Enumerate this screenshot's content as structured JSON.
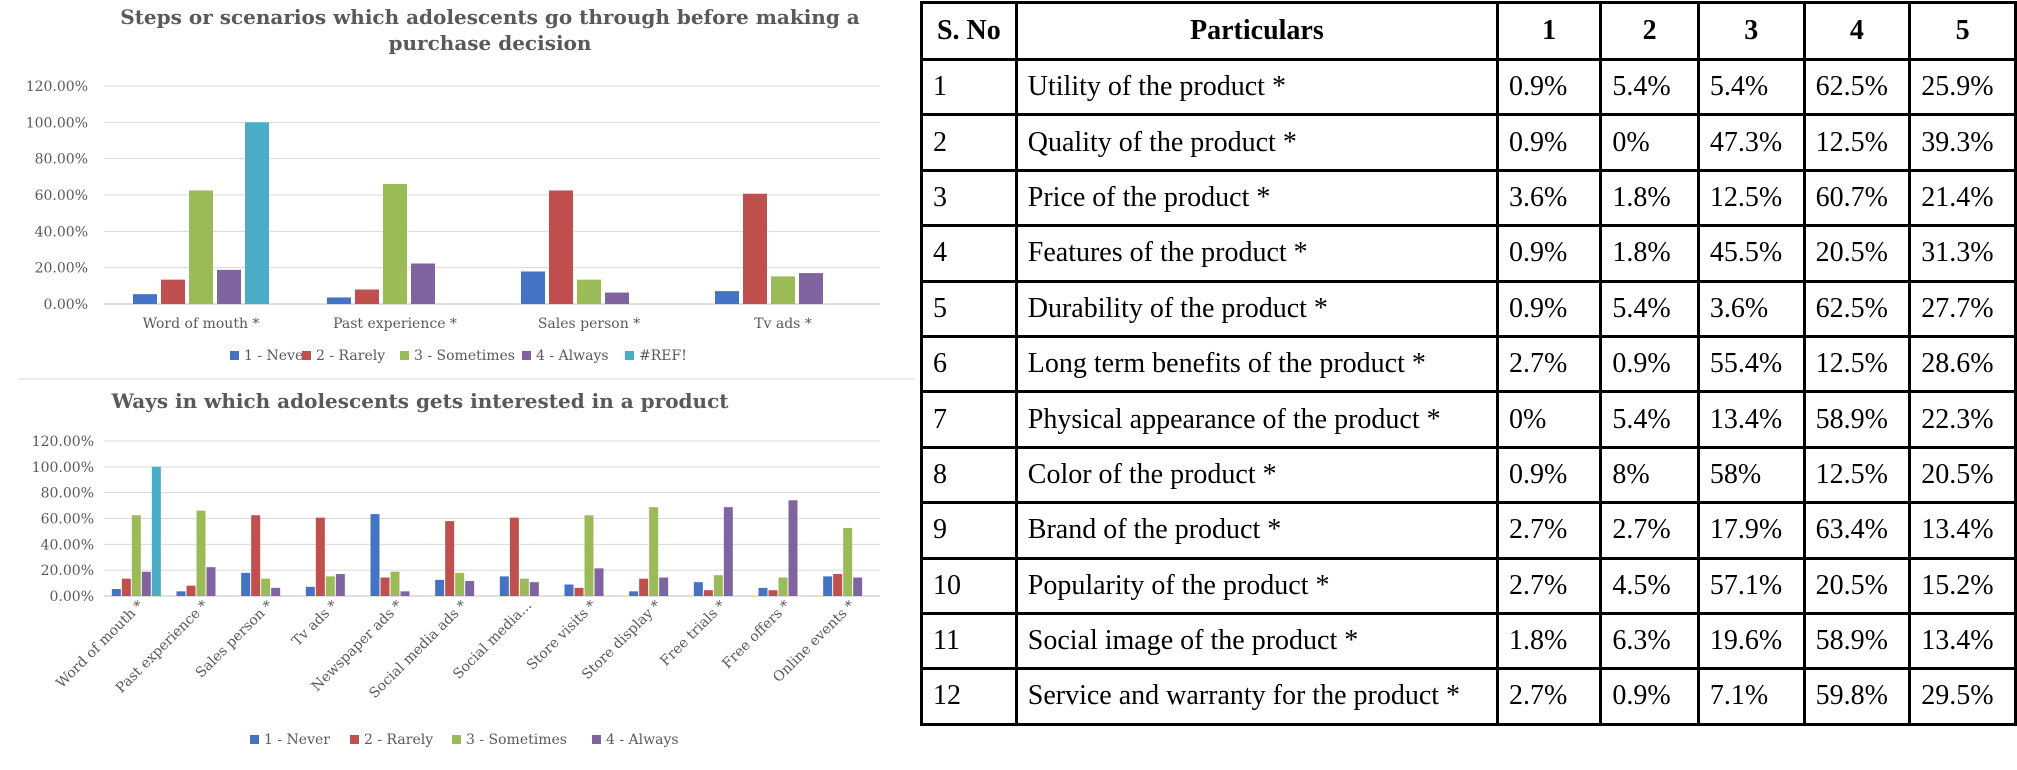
{
  "colors": {
    "never": "#4472c4",
    "rarely": "#c0504d",
    "sometimes": "#9bbb59",
    "always": "#8064a2",
    "ref": "#4bacc6"
  },
  "chart_data": [
    {
      "type": "bar",
      "title_lines": [
        "Steps or scenarios which adolescents go through before making a",
        "purchase decision"
      ],
      "categories": [
        "Word of mouth *",
        "Past experience *",
        "Sales person *",
        "Tv ads *"
      ],
      "ylim": [
        0,
        120
      ],
      "yticks": [
        "0.00%",
        "20.00%",
        "40.00%",
        "60.00%",
        "80.00%",
        "100.00%",
        "120.00%"
      ],
      "grid": true,
      "legend_position": "bottom",
      "series": [
        {
          "name": "1 - Never",
          "color": "#4472c4",
          "values": [
            5.4,
            3.6,
            17.9,
            7.1
          ]
        },
        {
          "name": "2 - Rarely",
          "color": "#c0504d",
          "values": [
            13.4,
            8.0,
            62.5,
            60.7
          ]
        },
        {
          "name": "3 - Sometimes",
          "color": "#9bbb59",
          "values": [
            62.5,
            66.1,
            13.4,
            15.2
          ]
        },
        {
          "name": "4 - Always",
          "color": "#8064a2",
          "values": [
            18.8,
            22.3,
            6.3,
            17.0
          ]
        },
        {
          "name": "#REF!",
          "color": "#4bacc6",
          "values": [
            100,
            0,
            0,
            0
          ]
        }
      ]
    },
    {
      "type": "bar",
      "title_lines": [
        "Ways in which adolescents gets interested in a product"
      ],
      "categories": [
        "Word of mouth *",
        "Past experience *",
        "Sales person *",
        "Tv ads *",
        "Newspaper ads *",
        "Social media ads *",
        "Social media...",
        "Store visits *",
        "Store display *",
        "Free trials *",
        "Free offers *",
        "Online events *"
      ],
      "ylim": [
        0,
        120
      ],
      "yticks": [
        "0.00%",
        "20.00%",
        "40.00%",
        "60.00%",
        "80.00%",
        "100.00%",
        "120.00%"
      ],
      "grid": true,
      "legend_position": "bottom",
      "series": [
        {
          "name": "1 - Never",
          "color": "#4472c4",
          "values": [
            5.4,
            3.6,
            17.9,
            7.1,
            63.4,
            12.5,
            15.2,
            8.9,
            3.6,
            10.7,
            6.3,
            15.2
          ]
        },
        {
          "name": "2 - Rarely",
          "color": "#c0504d",
          "values": [
            13.4,
            8.0,
            62.5,
            60.7,
            14.3,
            58.0,
            60.7,
            6.3,
            13.4,
            4.5,
            4.5,
            17.0
          ]
        },
        {
          "name": "3 - Sometimes",
          "color": "#9bbb59",
          "values": [
            62.5,
            66.1,
            13.4,
            15.2,
            18.8,
            17.9,
            13.4,
            62.5,
            68.8,
            16.1,
            14.3,
            52.7
          ]
        },
        {
          "name": "4 - Always",
          "color": "#8064a2",
          "values": [
            18.8,
            22.3,
            6.3,
            17.0,
            3.6,
            11.6,
            10.7,
            21.4,
            14.3,
            68.8,
            74.1,
            14.3
          ]
        },
        {
          "name": "",
          "color": "#4bacc6",
          "values": [
            100,
            0,
            0,
            0,
            0,
            0,
            0,
            0,
            0,
            0,
            0,
            0
          ]
        }
      ]
    }
  ],
  "table": {
    "headers": [
      "S. No",
      "Particulars",
      "1",
      "2",
      "3",
      "4",
      "5"
    ],
    "rows": [
      [
        "1",
        "Utility of the product *",
        "0.9%",
        "5.4%",
        "5.4%",
        "62.5%",
        "25.9%"
      ],
      [
        "2",
        "Quality of the product *",
        "0.9%",
        "0%",
        "47.3%",
        "12.5%",
        "39.3%"
      ],
      [
        "3",
        "Price of the product *",
        "3.6%",
        "1.8%",
        "12.5%",
        "60.7%",
        "21.4%"
      ],
      [
        "4",
        "Features of the product *",
        "0.9%",
        "1.8%",
        "45.5%",
        "20.5%",
        "31.3%"
      ],
      [
        "5",
        "Durability of the product *",
        "0.9%",
        "5.4%",
        "3.6%",
        "62.5%",
        "27.7%"
      ],
      [
        "6",
        "Long term benefits of the product *",
        "2.7%",
        "0.9%",
        "55.4%",
        "12.5%",
        "28.6%"
      ],
      [
        "7",
        "Physical appearance of the product *",
        "0%",
        "5.4%",
        "13.4%",
        "58.9%",
        "22.3%"
      ],
      [
        "8",
        "Color of the product *",
        "0.9%",
        "8%",
        "58%",
        "12.5%",
        "20.5%"
      ],
      [
        "9",
        "Brand of the product *",
        "2.7%",
        "2.7%",
        "17.9%",
        "63.4%",
        "13.4%"
      ],
      [
        "10",
        "Popularity of the product *",
        "2.7%",
        "4.5%",
        "57.1%",
        "20.5%",
        "15.2%"
      ],
      [
        "11",
        "Social image of the product *",
        "1.8%",
        "6.3%",
        "19.6%",
        "58.9%",
        "13.4%"
      ],
      [
        "12",
        "Service and warranty for the product *",
        "2.7%",
        "0.9%",
        "7.1%",
        "59.8%",
        "29.5%"
      ]
    ]
  }
}
